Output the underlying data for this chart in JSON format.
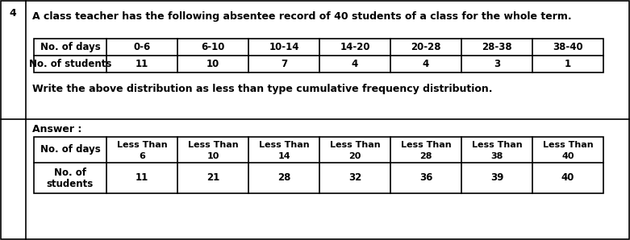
{
  "question_number": "4",
  "question_text": "A class teacher has the following absentee record of 40 students of a class for the whole term.",
  "instruction_text": "Write the above distribution as less than type cumulative frequency distribution.",
  "answer_label": "Answer :",
  "table1_headers": [
    "No. of days",
    "0-6",
    "6-10",
    "10-14",
    "14-20",
    "20-28",
    "28-38",
    "38-40"
  ],
  "table1_row_label": "No. of students",
  "table1_values": [
    "11",
    "10",
    "7",
    "4",
    "4",
    "3",
    "1"
  ],
  "table2_row1_label": "No. of days",
  "table2_col_headers_line1": [
    "Less Than",
    "Less Than",
    "Less Than",
    "Less Than",
    "Less Than",
    "Less Than",
    "Less Than"
  ],
  "table2_col_headers_line2": [
    "6",
    "10",
    "14",
    "20",
    "28",
    "38",
    "40"
  ],
  "table2_row2_label_line1": "No. of",
  "table2_row2_label_line2": "students",
  "table2_values": [
    "11",
    "21",
    "28",
    "32",
    "36",
    "39",
    "40"
  ],
  "border_color": "#000000",
  "text_color": "#000000",
  "bg_color": "#ffffff",
  "fs_main": 9.0,
  "fs_table": 8.5
}
